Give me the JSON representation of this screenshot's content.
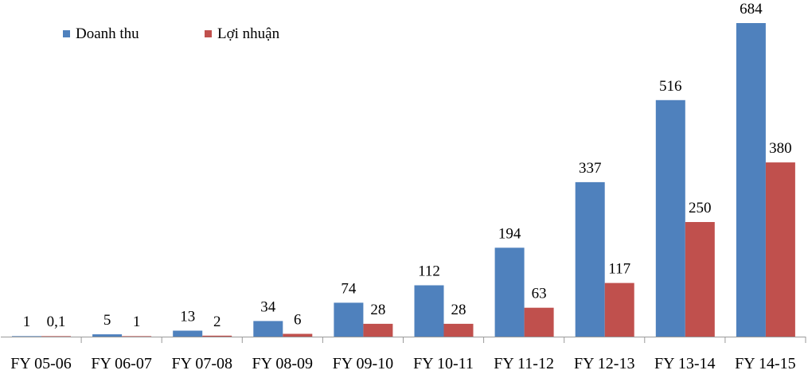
{
  "chart_data": {
    "type": "bar",
    "categories": [
      "FY 05-06",
      "FY 06-07",
      "FY 07-08",
      "FY 08-09",
      "FY 09-10",
      "FY 10-11",
      "FY 11-12",
      "FY 12-13",
      "FY 13-14",
      "FY 14-15"
    ],
    "series": [
      {
        "name": "Doanh thu",
        "color": "#4F81BD",
        "values": [
          1,
          5,
          13,
          34,
          74,
          112,
          194,
          337,
          516,
          684
        ],
        "labels": [
          "1",
          "5",
          "13",
          "34",
          "74",
          "112",
          "194",
          "337",
          "516",
          "684"
        ]
      },
      {
        "name": "Lợi nhuận",
        "color": "#C0504D",
        "values": [
          0.1,
          1,
          2,
          6,
          28,
          28,
          63,
          117,
          250,
          380
        ],
        "labels": [
          "0,1",
          "1",
          "2",
          "6",
          "28",
          "28",
          "63",
          "117",
          "250",
          "380"
        ]
      }
    ],
    "ylim": [
      0,
      700
    ],
    "grid": false,
    "legend_position": "top-left"
  }
}
